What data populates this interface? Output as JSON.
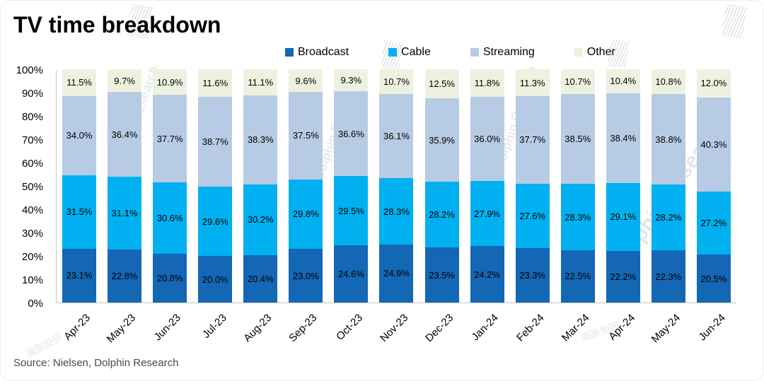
{
  "title": "TV time breakdown",
  "source": "Source:  Nielsen,  Dolphin Research",
  "watermark": {
    "en": "Dolphin Research",
    "cn": "海豚投研"
  },
  "chart_data": {
    "type": "bar",
    "stacked": true,
    "title": "TV time breakdown",
    "xlabel": "",
    "ylabel": "",
    "ylim": [
      0,
      100
    ],
    "grid": false,
    "legend_position": "top",
    "yticks": [
      "0%",
      "10%",
      "20%",
      "30%",
      "40%",
      "50%",
      "60%",
      "70%",
      "80%",
      "90%",
      "100%"
    ],
    "categories": [
      "Apr-23",
      "May-23",
      "Jun-23",
      "Jul-23",
      "Aug-23",
      "Sep-23",
      "Oct-23",
      "Nov-23",
      "Dec-23",
      "Jan-24",
      "Feb-24",
      "Mar-24",
      "Apr-24",
      "May-24",
      "Jun-24"
    ],
    "series": [
      {
        "name": "Broadcast",
        "color": "#1467b4",
        "values": [
          23.1,
          22.8,
          20.8,
          20.0,
          20.4,
          23.0,
          24.6,
          24.9,
          23.5,
          24.2,
          23.3,
          22.5,
          22.2,
          22.3,
          20.5
        ]
      },
      {
        "name": "Cable",
        "color": "#00b0f0",
        "values": [
          31.5,
          31.1,
          30.6,
          29.6,
          30.2,
          29.8,
          29.5,
          28.3,
          28.2,
          27.9,
          27.6,
          28.3,
          29.1,
          28.2,
          27.2
        ]
      },
      {
        "name": "Streaming",
        "color": "#b8cbe4",
        "values": [
          34.0,
          36.4,
          37.7,
          38.7,
          38.3,
          37.5,
          36.6,
          36.1,
          35.9,
          36.0,
          37.7,
          38.5,
          38.4,
          38.8,
          40.3
        ]
      },
      {
        "name": "Other",
        "color": "#edf2e0",
        "values": [
          11.5,
          9.7,
          10.9,
          11.6,
          11.1,
          9.6,
          9.3,
          10.7,
          12.5,
          11.8,
          11.3,
          10.7,
          10.4,
          10.8,
          12.0
        ]
      }
    ]
  }
}
